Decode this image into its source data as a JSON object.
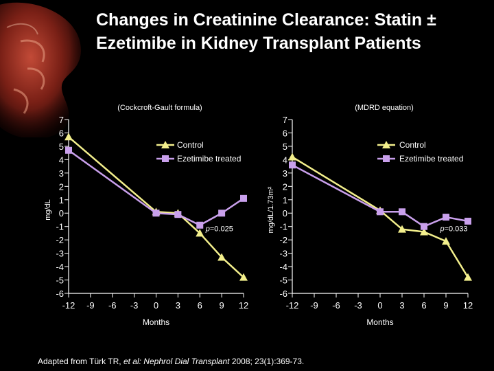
{
  "title_line1": "Changes in Creatinine Clearance: Statin ±",
  "title_line2": "Ezetimibe in Kidney Transplant Patients",
  "citation": {
    "prefix": "Adapted from Türk TR, ",
    "italic": "et al: Nephrol Dial Transplant",
    "suffix": " 2008; 23(1):369-73."
  },
  "colors": {
    "background": "#000000",
    "control": "#f3ef8c",
    "ezetimibe": "#c9a0ec",
    "axis": "#ffffff"
  },
  "chart_data": [
    {
      "type": "line",
      "title": "(Cockcroft-Gault formula)",
      "xlabel": "Months",
      "ylabel": "mg/dL",
      "xlim": [
        -12,
        12
      ],
      "ylim": [
        -6,
        7
      ],
      "xticks": [
        -12,
        -9,
        -6,
        -3,
        0,
        3,
        6,
        9,
        12
      ],
      "yticks": [
        7,
        6,
        5,
        4,
        3,
        2,
        1,
        0,
        -1,
        -2,
        -3,
        -4,
        -5,
        -6
      ],
      "annotation": "p=0.025",
      "annotation_pos": [
        6.8,
        -1.35
      ],
      "legend": "top-right",
      "series": [
        {
          "name": "Control",
          "color": "#f3ef8c",
          "marker": "triangle",
          "x": [
            -12,
            0,
            3,
            6,
            9,
            12
          ],
          "y": [
            5.7,
            0.1,
            0.0,
            -1.5,
            -3.3,
            -4.8
          ]
        },
        {
          "name": "Ezetimibe treated",
          "color": "#c9a0ec",
          "marker": "square",
          "x": [
            -12,
            0,
            3,
            6,
            9,
            12
          ],
          "y": [
            4.7,
            0.0,
            -0.1,
            -0.9,
            0.0,
            1.1
          ]
        }
      ]
    },
    {
      "type": "line",
      "title": "(MDRD equation)",
      "xlabel": "Months",
      "ylabel": "mg/dL/1.73m²",
      "xlim": [
        -12,
        12
      ],
      "ylim": [
        -6,
        7
      ],
      "xticks": [
        -12,
        -9,
        -6,
        -3,
        0,
        3,
        6,
        9,
        12
      ],
      "yticks": [
        7,
        6,
        5,
        4,
        3,
        2,
        1,
        0,
        -1,
        -2,
        -3,
        -4,
        -5,
        -6
      ],
      "annotation": "p=0.033",
      "annotation_pos": [
        8.2,
        -1.35
      ],
      "legend": "top-right",
      "series": [
        {
          "name": "Control",
          "color": "#f3ef8c",
          "marker": "triangle",
          "x": [
            -12,
            0,
            3,
            6,
            9,
            12
          ],
          "y": [
            4.2,
            0.2,
            -1.2,
            -1.4,
            -2.1,
            -4.8
          ]
        },
        {
          "name": "Ezetimibe treated",
          "color": "#c9a0ec",
          "marker": "square",
          "x": [
            -12,
            0,
            3,
            6,
            9,
            12
          ],
          "y": [
            3.6,
            0.1,
            0.1,
            -1.0,
            -0.3,
            -0.6
          ]
        }
      ]
    }
  ]
}
